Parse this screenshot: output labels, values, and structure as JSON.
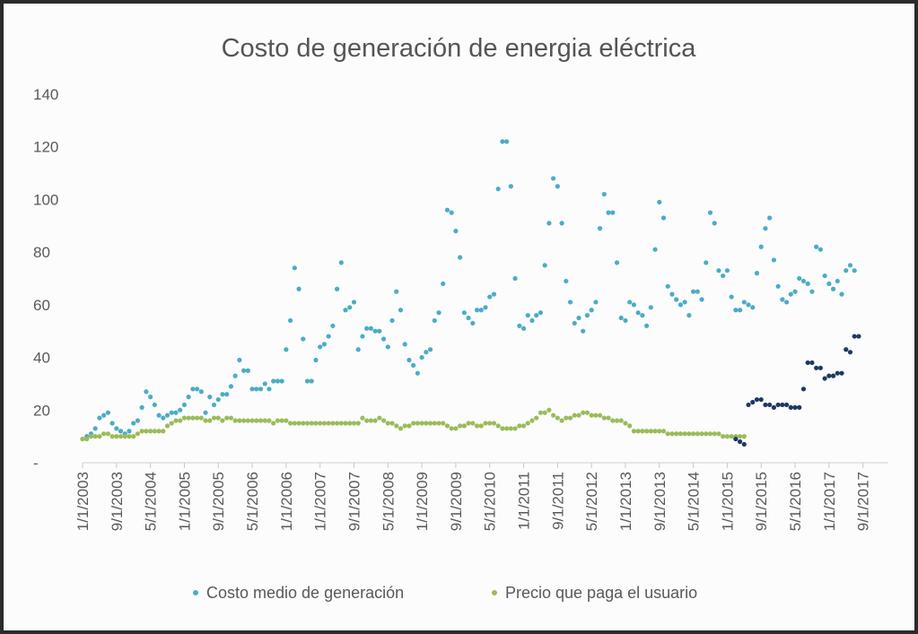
{
  "chart_data": {
    "type": "scatter",
    "title": "Costo de generación de energia eléctrica",
    "xlabel": "",
    "ylabel": "",
    "ylim": [
      0,
      140
    ],
    "y_ticks": [
      0,
      20,
      40,
      60,
      80,
      100,
      120,
      140
    ],
    "y_tick_labels": [
      "-",
      "20",
      "40",
      "60",
      "80",
      "100",
      "120",
      "140"
    ],
    "x_tick_labels": [
      "1/1/2003",
      "9/1/2003",
      "5/1/2004",
      "1/1/2005",
      "9/1/2005",
      "5/1/2006",
      "1/1/2006",
      "1/1/2007",
      "9/1/2007",
      "5/1/2008",
      "1/1/2009",
      "9/1/2009",
      "5/1/2010",
      "1/1/2011",
      "9/1/2011",
      "5/1/2012",
      "1/1/2013",
      "9/1/2013",
      "5/1/2014",
      "1/1/2015",
      "9/1/2015",
      "5/1/2016",
      "1/1/2017",
      "9/1/2017"
    ],
    "x_tick_positions": [
      0,
      8,
      16,
      24,
      32,
      40,
      48,
      56,
      64,
      72,
      80,
      88,
      96,
      104,
      112,
      120,
      128,
      136,
      144,
      152,
      160,
      168,
      176,
      184
    ],
    "x_range": [
      0,
      190
    ],
    "x_note": "x values are month index counted from Jan 2003",
    "colors": {
      "cost": "#4bacc6",
      "price": "#9bbb59",
      "recent": "#1f3864"
    },
    "legend": [
      "Costo medio de generación",
      "Precio que paga el usuario"
    ],
    "series": [
      {
        "name": "Costo medio de generación",
        "color": "#4bacc6",
        "values": [
          9,
          10,
          11,
          13,
          17,
          18,
          19,
          15,
          13,
          12,
          11,
          12,
          15,
          16,
          21,
          27,
          25,
          22,
          18,
          17,
          18,
          19,
          19,
          20,
          22,
          25,
          28,
          28,
          27,
          19,
          25,
          22,
          24,
          26,
          26,
          29,
          33,
          39,
          35,
          35,
          28,
          28,
          28,
          30,
          28,
          31,
          31,
          31,
          43,
          54,
          74,
          66,
          47,
          31,
          31,
          39,
          44,
          45,
          48,
          52,
          66,
          76,
          58,
          59,
          61,
          43,
          48,
          51,
          51,
          50,
          50,
          47,
          44,
          54,
          65,
          58,
          45,
          39,
          37,
          34,
          40,
          42,
          43,
          54,
          57,
          68,
          96,
          95,
          88,
          78,
          57,
          55,
          53,
          58,
          58,
          59,
          63,
          64,
          104,
          122,
          122,
          105,
          70,
          52,
          51,
          56,
          54,
          56,
          57,
          75,
          91,
          108,
          105,
          91,
          69,
          61,
          53,
          55,
          50,
          56,
          58,
          61,
          89,
          102,
          95,
          95,
          76,
          55,
          54,
          61,
          60,
          57,
          56,
          52,
          59,
          81,
          99,
          93,
          67,
          64,
          62,
          60,
          61,
          56,
          65,
          65,
          62,
          76,
          95,
          91,
          73,
          71,
          73,
          63,
          58,
          58,
          61,
          60,
          59,
          72,
          82,
          89,
          93,
          77,
          67,
          62,
          61,
          64,
          65,
          70,
          69,
          68,
          65,
          82,
          81,
          71,
          68,
          66,
          69,
          64,
          73,
          75,
          73
        ]
      },
      {
        "name": "Precio que paga el usuario",
        "color": "#9bbb59",
        "values": [
          9,
          9,
          10,
          10,
          10,
          11,
          11,
          10,
          10,
          10,
          10,
          10,
          10,
          11,
          12,
          12,
          12,
          12,
          12,
          12,
          14,
          15,
          16,
          16,
          17,
          17,
          17,
          17,
          17,
          16,
          16,
          17,
          17,
          16,
          17,
          17,
          16,
          16,
          16,
          16,
          16,
          16,
          16,
          16,
          16,
          15,
          16,
          16,
          16,
          15,
          15,
          15,
          15,
          15,
          15,
          15,
          15,
          15,
          15,
          15,
          15,
          15,
          15,
          15,
          15,
          15,
          17,
          16,
          16,
          16,
          17,
          16,
          15,
          15,
          14,
          13,
          14,
          14,
          15,
          15,
          15,
          15,
          15,
          15,
          15,
          15,
          14,
          13,
          13,
          14,
          14,
          15,
          15,
          14,
          14,
          15,
          15,
          15,
          14,
          13,
          13,
          13,
          13,
          14,
          14,
          15,
          16,
          17,
          19,
          19,
          20,
          18,
          17,
          16,
          17,
          17,
          18,
          18,
          19,
          19,
          18,
          18,
          18,
          17,
          17,
          16,
          16,
          16,
          15,
          14,
          12,
          12,
          12,
          12,
          12,
          12,
          12,
          12,
          11,
          11,
          11,
          11,
          11,
          11,
          11,
          11,
          11,
          11,
          11,
          11,
          11,
          10,
          10,
          10,
          10,
          10,
          10
        ]
      },
      {
        "name": "Costo medio de generación (reciente)",
        "color": "#1f3864",
        "x_start": 154,
        "values": [
          9,
          8,
          7,
          22,
          23,
          24,
          24,
          22,
          22,
          21,
          22,
          22,
          22,
          21,
          21,
          21,
          28,
          38,
          38,
          36,
          36,
          32,
          33,
          33,
          34,
          34,
          43,
          42,
          48,
          48
        ]
      }
    ]
  }
}
